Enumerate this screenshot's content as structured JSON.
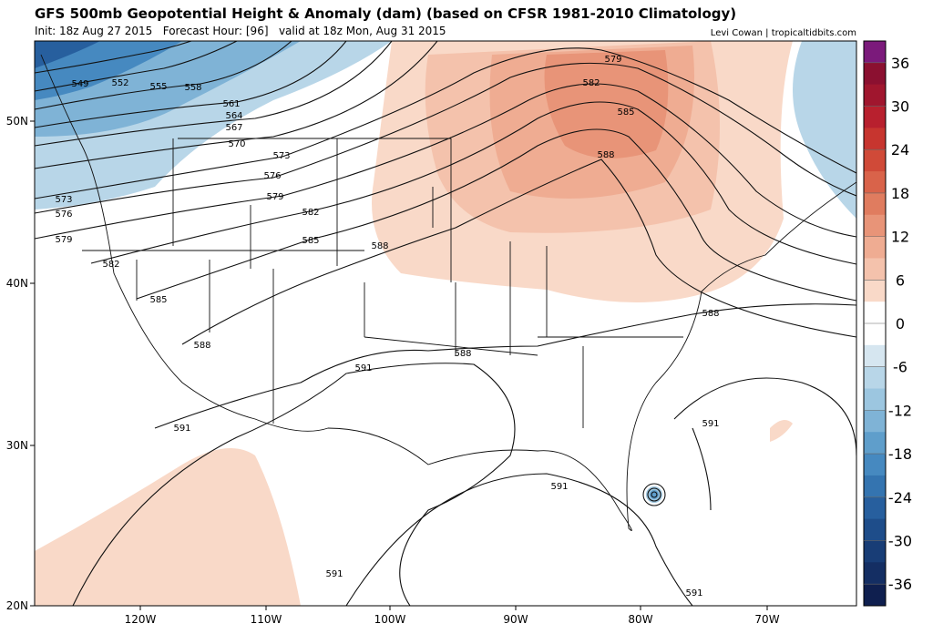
{
  "header": {
    "title": "GFS 500mb Geopotential Height & Anomaly (dam) (based on CFSR 1981-2010 Climatology)",
    "subtitle": "Init: 18z Aug 27 2015   Forecast Hour: [96]   valid at 18z Mon, Aug 31 2015",
    "credit": "Levi Cowan | tropicaltidbits.com"
  },
  "map": {
    "lon_labels": [
      "120W",
      "110W",
      "100W",
      "90W",
      "80W",
      "70W"
    ],
    "lat_labels": [
      "50N",
      "40N",
      "30N",
      "20N"
    ],
    "contour_labels": [
      549,
      552,
      555,
      558,
      561,
      564,
      567,
      570,
      573,
      576,
      579,
      582,
      585,
      588,
      573,
      576,
      579,
      582,
      585,
      588,
      591,
      588,
      591,
      579,
      582,
      585,
      588,
      588,
      591,
      591,
      591,
      591
    ]
  },
  "colorbar": {
    "range": [
      -39,
      39
    ],
    "ticks": [
      36,
      30,
      24,
      18,
      12,
      6,
      0,
      -6,
      -12,
      -18,
      -24,
      -30,
      -36
    ],
    "colors": [
      "#7b1a7b",
      "#8b1030",
      "#a0162e",
      "#b8202e",
      "#c7352f",
      "#d04a38",
      "#d9634a",
      "#e07c5f",
      "#e89478",
      "#efac92",
      "#f4c2ac",
      "#f9d9c8",
      "#ffffff",
      "#ffffff",
      "#d6e6f0",
      "#b8d6e8",
      "#9cc6e0",
      "#7fb3d6",
      "#5f9ecb",
      "#4689c0",
      "#3474b0",
      "#275f9e",
      "#1e4d8a",
      "#183d76",
      "#142e63",
      "#0f1f4f"
    ]
  }
}
